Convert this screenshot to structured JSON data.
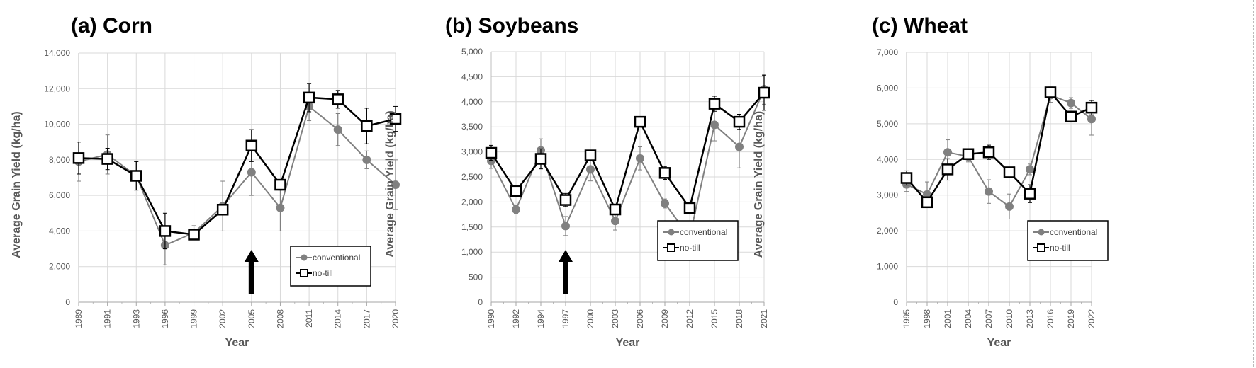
{
  "chart_data": [
    {
      "type": "line",
      "title": "(a) Corn",
      "xlabel": "Year",
      "ylabel": "Average Grain Yield (kg/ha)",
      "ylim": [
        0,
        14000
      ],
      "yticks": [
        0,
        2000,
        4000,
        6000,
        8000,
        10000,
        12000,
        14000
      ],
      "ytick_labels": [
        "0",
        "2,000",
        "4,000",
        "6,000",
        "8,000",
        "10,000",
        "12,000",
        "14,000"
      ],
      "categories": [
        "1989",
        "1991",
        "1993",
        "1996",
        "1999",
        "2002",
        "2005",
        "2008",
        "2011",
        "2014",
        "2017",
        "2020"
      ],
      "series": [
        {
          "name": "conventional",
          "color": "#808080",
          "marker": "circle",
          "values": [
            7900,
            8300,
            7100,
            3200,
            3900,
            5400,
            7300,
            5300,
            11000,
            9700,
            8000,
            6600
          ],
          "error": [
            1100,
            1100,
            800,
            1100,
            400,
            1400,
            1300,
            1300,
            800,
            900,
            500,
            1400
          ]
        },
        {
          "name": "no-till",
          "color": "#000000",
          "marker": "square",
          "values": [
            8100,
            8050,
            7100,
            4000,
            3800,
            5200,
            8800,
            6600,
            11500,
            11400,
            9900,
            10300
          ],
          "error": [
            900,
            600,
            800,
            1000,
            300,
            300,
            900,
            300,
            800,
            500,
            1000,
            700
          ]
        }
      ],
      "arrow_at": "2005",
      "grid": true,
      "legend": "bottom-right"
    },
    {
      "type": "line",
      "title": "(b) Soybeans",
      "xlabel": "Year",
      "ylabel": "Average Grain Yield (kg/ha)",
      "ylim": [
        0,
        5000
      ],
      "yticks": [
        0,
        500,
        1000,
        1500,
        2000,
        2500,
        3000,
        3500,
        4000,
        4500,
        5000
      ],
      "ytick_labels": [
        "0",
        "500",
        "1,000",
        "1,500",
        "2,000",
        "2,500",
        "3,000",
        "3,500",
        "4,000",
        "4,500",
        "5,000"
      ],
      "categories": [
        "1990",
        "1992",
        "1994",
        "1997",
        "2000",
        "2003",
        "2006",
        "2009",
        "2012",
        "2015",
        "2018",
        "2021"
      ],
      "series": [
        {
          "name": "conventional",
          "color": "#808080",
          "marker": "circle",
          "values": [
            2820,
            1850,
            3030,
            1520,
            2650,
            1620,
            2870,
            1970,
            1300,
            3540,
            3100,
            4250
          ],
          "error": [
            150,
            80,
            230,
            190,
            230,
            180,
            230,
            90,
            300,
            320,
            420,
            300
          ]
        },
        {
          "name": "no-till",
          "color": "#000000",
          "marker": "square",
          "values": [
            2980,
            2220,
            2860,
            2040,
            2930,
            1850,
            3600,
            2580,
            1880,
            3960,
            3600,
            4180
          ],
          "error": [
            150,
            100,
            200,
            130,
            100,
            100,
            100,
            130,
            100,
            150,
            150,
            350
          ]
        }
      ],
      "arrow_at": "1997",
      "grid": true,
      "legend": "bottom-right"
    },
    {
      "type": "line",
      "title": "(c) Wheat",
      "xlabel": "Year",
      "ylabel": "Average Grain Yield (kg/ha)",
      "ylim": [
        0,
        7000
      ],
      "yticks": [
        0,
        1000,
        2000,
        3000,
        4000,
        5000,
        6000,
        7000
      ],
      "ytick_labels": [
        "0",
        "1,000",
        "2,000",
        "3,000",
        "4,000",
        "5,000",
        "6,000",
        "7,000"
      ],
      "categories": [
        "1995",
        "1998",
        "2001",
        "2004",
        "2007",
        "2010",
        "2013",
        "2016",
        "2019",
        "2022"
      ],
      "series": [
        {
          "name": "conventional",
          "color": "#808080",
          "marker": "circle",
          "values": [
            3300,
            3020,
            4200,
            4080,
            3100,
            2680,
            3720,
            5800,
            5580,
            5130
          ],
          "error": [
            200,
            350,
            350,
            150,
            330,
            350,
            150,
            200,
            150,
            450
          ]
        },
        {
          "name": "no-till",
          "color": "#000000",
          "marker": "square",
          "values": [
            3480,
            2800,
            3720,
            4150,
            4200,
            3640,
            3040,
            5880,
            5200,
            5450
          ],
          "error": [
            200,
            150,
            300,
            100,
            200,
            100,
            250,
            150,
            150,
            200
          ]
        }
      ],
      "grid": true,
      "legend": "bottom-right"
    }
  ]
}
